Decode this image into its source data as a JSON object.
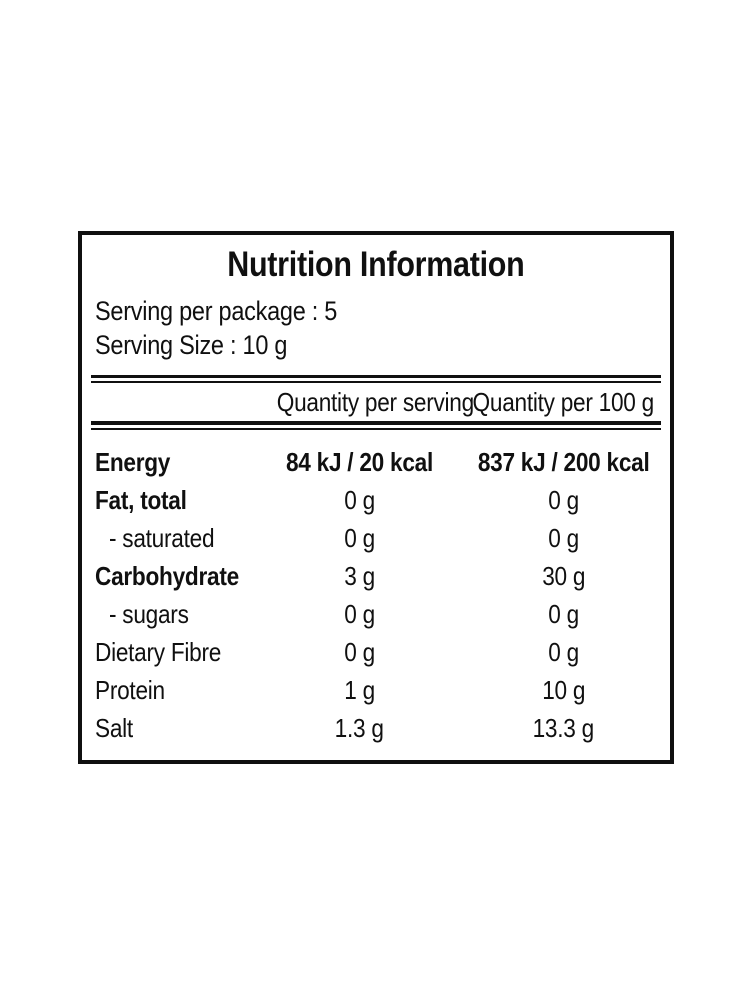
{
  "nutrition": {
    "title": "Nutrition Information",
    "serving_per_package": "Serving per package : 5",
    "serving_size": "Serving Size : 10 g",
    "columns": {
      "per_serving": "Quantity per serving",
      "per_100g": "Quantity per 100 g"
    },
    "rows": [
      {
        "name": "Energy",
        "serving": "84 kJ / 20 kcal",
        "per100": "837 kJ / 200 kcal"
      },
      {
        "name": "Fat, total",
        "serving": "0 g",
        "per100": "0 g"
      },
      {
        "name": "- saturated",
        "serving": "0 g",
        "per100": "0 g"
      },
      {
        "name": "Carbohydrate",
        "serving": "3 g",
        "per100": "30 g"
      },
      {
        "name": "- sugars",
        "serving": "0 g",
        "per100": "0 g"
      },
      {
        "name": "Dietary Fibre",
        "serving": "0 g",
        "per100": "0 g"
      },
      {
        "name": "Protein",
        "serving": "1 g",
        "per100": "10 g"
      },
      {
        "name": "Salt",
        "serving": "1.3 g",
        "per100": "13.3 g"
      }
    ],
    "colors": {
      "text": "#101010",
      "border": "#101010",
      "background": "#ffffff"
    }
  }
}
